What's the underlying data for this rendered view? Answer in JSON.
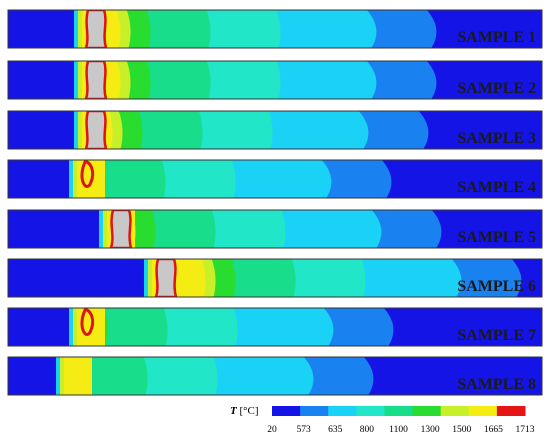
{
  "samples": [
    {
      "label": "SAMPLE 1"
    },
    {
      "label": "SAMPLE 2"
    },
    {
      "label": "SAMPLE 3"
    },
    {
      "label": "SAMPLE 4"
    },
    {
      "label": "SAMPLE 5"
    },
    {
      "label": "SAMPLE 6"
    },
    {
      "label": "SAMPLE 7"
    },
    {
      "label": "SAMPLE 8"
    }
  ],
  "legend": {
    "symbol": "T",
    "unit": "[°C]",
    "ticks": [
      "20",
      "573",
      "635",
      "800",
      "1100",
      "1300",
      "1500",
      "1665",
      "1713"
    ],
    "colors": [
      "#1414e6",
      "#1a82f0",
      "#1ad2f5",
      "#22e6c8",
      "#18dd8a",
      "#28dc30",
      "#c8f028",
      "#f5ec14",
      "#e61414"
    ]
  },
  "palette": {
    "outline": "#333333",
    "melt_pool": "#c8c8c8",
    "melt_boundary": "#dc1414"
  }
}
